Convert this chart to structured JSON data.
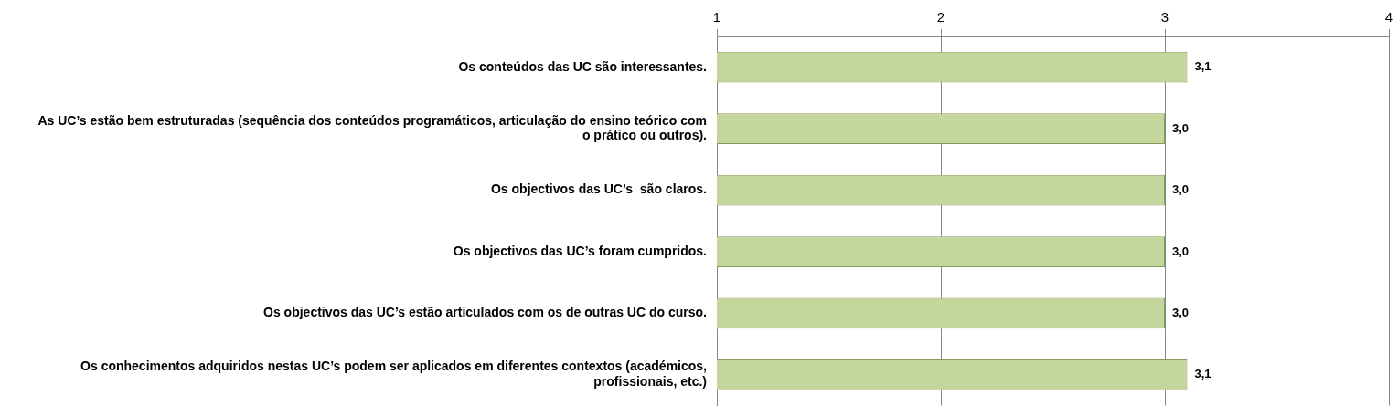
{
  "chart_data": {
    "type": "bar",
    "orientation": "horizontal",
    "categories": [
      "Os conteúdos das UC são interessantes.",
      "As UC’s estão bem estruturadas (sequência dos conteúdos programáticos, articulação do ensino teórico com o prático ou outros).",
      "Os objectivos das UC’s  são claros.",
      "Os objectivos das UC’s foram cumpridos.",
      "Os objectivos das UC’s estão articulados com os de outras UC do curso.",
      "Os conhecimentos adquiridos nestas UC’s podem ser aplicados em diferentes contextos (académicos, profissionais, etc.)"
    ],
    "values": [
      3.1,
      3.0,
      3.0,
      3.0,
      3.0,
      3.1
    ],
    "value_labels": [
      "3,1",
      "3,0",
      "3,0",
      "3,0",
      "3,0",
      "3,1"
    ],
    "color": "#c4d79b",
    "xlim": [
      1,
      4
    ],
    "xticks": [
      1,
      2,
      3,
      4
    ],
    "grid": "x",
    "legend": false
  }
}
